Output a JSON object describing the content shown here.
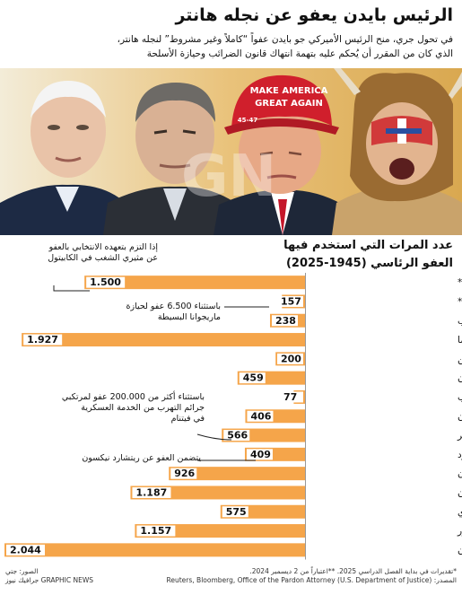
{
  "header": {
    "title": "الرئيس بايدن يعفو عن نجله هانتر",
    "subtitle_line1": "في تحول جري، منح الرئيس الأميركي جو بايدن عفواً “كاملاً وغير مشروط” لنجله هانتر،",
    "subtitle_line2": "الذي كان من المقرر أن يُحكم عليه بتهمة انتهاك قانون الضرائب وحيازة الأسلحة"
  },
  "photo": {
    "hat_text_1": "MAKE AMERICA",
    "hat_text_2": "GREAT AGAIN",
    "hat_text_3": "45-47"
  },
  "chart_heading": {
    "line1": "عدد المرات التي استخدم فيها",
    "line2": "العفو الرئاسي (1945-2025)"
  },
  "chart_data": {
    "type": "bar",
    "orientation": "horizontal",
    "title": "عدد المرات التي استخدم فيها العفو الرئاسي (1945-2025)",
    "categories": [
      "دونالد ترامب*",
      "جو بايدن**",
      "دونالد ترامب",
      "باراك أوباما",
      "جورج بوش الإبن",
      "بيل كلينتون",
      "جورج بوش الأب",
      "رونالد ريغان",
      "جيمي كارتر",
      "جيرالد فورد",
      "ريتشارد نيكسون",
      "ليندون جونسون",
      "جون أف. كينيدي",
      "دوايت د. أيزنهاور",
      "هاري س. ترومان"
    ],
    "values": [
      1500,
      157,
      238,
      1927,
      200,
      459,
      77,
      406,
      566,
      409,
      926,
      1187,
      575,
      1157,
      2044
    ],
    "value_labels": [
      "1.500",
      "157",
      "238",
      "1.927",
      "200",
      "459",
      "77",
      "406",
      "566",
      "409",
      "926",
      "1.187",
      "575",
      "1.157",
      "2.044"
    ],
    "bar_color": "#f5a54a",
    "label_box_color": "#ffffff",
    "track_color": "#dcdcdc",
    "annotations": [
      {
        "row": 0,
        "lines": [
          "إذا التزم بتعهده الانتخابي بالعفو",
          "عن مثيري الشغب في الكابيتول"
        ]
      },
      {
        "row": 1,
        "lines": [
          "باستثناء 6.500 عفو لحيازة",
          "ماريجوانا البسيطة"
        ]
      },
      {
        "row": 8,
        "lines": [
          "باستثناء أكثر من 200.000 عفو لمرتكبي",
          "جرائم التهرب من الخدمة العسكرية",
          "في فيتنام"
        ]
      },
      {
        "row": 9,
        "lines": [
          "يتضمن العفو عن ريتشارد نيكسون"
        ]
      }
    ]
  },
  "footer": {
    "source_line1": "*تقديرات في بداية الفصل الدراسي 2025. **اعتباراً من 2 ديسمبر 2024.",
    "source_line2": "المصدر: Reuters, Bloomberg, Office of the Pardon Attorney (U.S. Department of Justice)",
    "credit_line1": "الصور: جتي",
    "credit_line2": "GRAPHIC NEWS جرافيك نيوز"
  }
}
